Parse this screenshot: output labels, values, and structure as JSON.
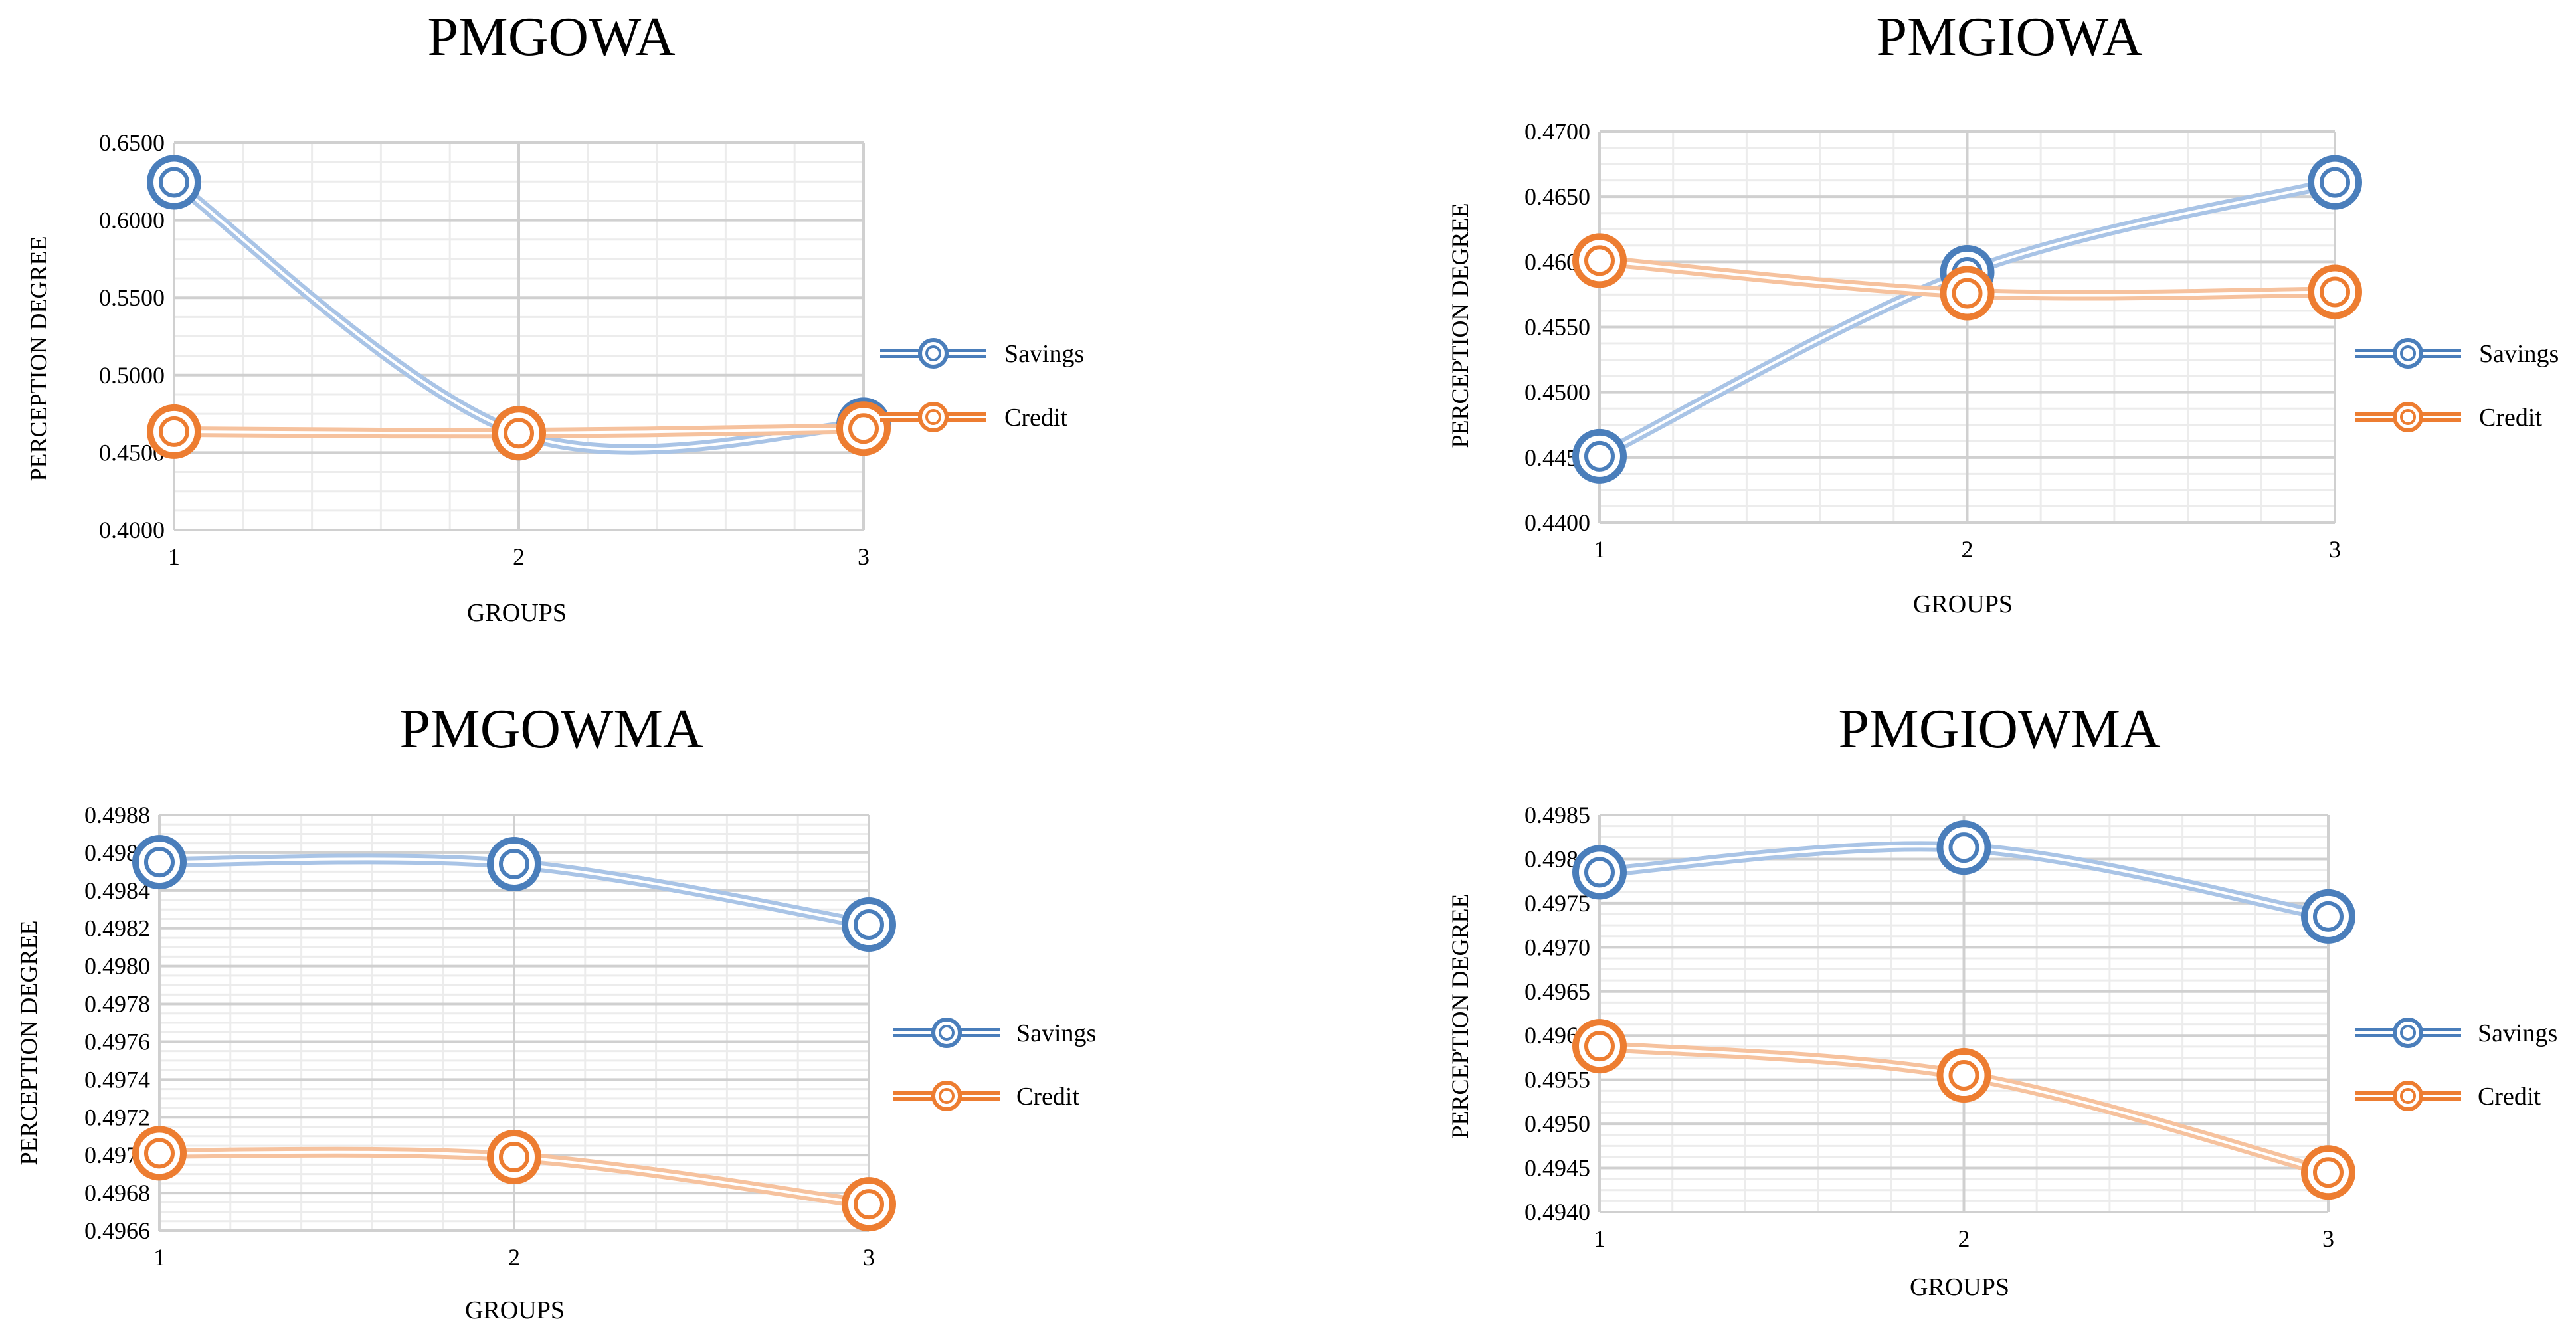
{
  "colors": {
    "savings": "#4a7ebb",
    "savings_light": "#a9c4e6",
    "credit": "#ed7d31",
    "credit_light": "#f6c29e",
    "grid_major": "#d0d0d0",
    "grid_minor": "#ececec"
  },
  "chart_data": [
    {
      "type": "line",
      "title": "PMGOWA",
      "xlabel": "GROUPS",
      "ylabel": "PERCEPTION  DEGREE",
      "categories": [
        "1",
        "2",
        "3"
      ],
      "ylim": [
        0.4,
        0.65
      ],
      "ystep": 0.05,
      "ydecimals": 4,
      "yticks": [
        "0.4000",
        "0.4500",
        "0.5000",
        "0.5500",
        "0.6000",
        "0.6500"
      ],
      "series": [
        {
          "name": "Savings",
          "values": [
            0.6245,
            0.4625,
            0.468
          ]
        },
        {
          "name": "Credit",
          "values": [
            0.4635,
            0.4625,
            0.4655
          ]
        }
      ]
    },
    {
      "type": "line",
      "title": "PMGIOWA",
      "xlabel": "GROUPS",
      "ylabel": "PERCEPTION  DEGREE",
      "categories": [
        "1",
        "2",
        "3"
      ],
      "ylim": [
        0.44,
        0.47
      ],
      "ystep": 0.005,
      "ydecimals": 4,
      "yticks": [
        "0.4400",
        "0.4450",
        "0.4500",
        "0.4550",
        "0.4600",
        "0.4650",
        "0.4700"
      ],
      "series": [
        {
          "name": "Savings",
          "values": [
            0.4451,
            0.4592,
            0.4661
          ]
        },
        {
          "name": "Credit",
          "values": [
            0.4601,
            0.4576,
            0.4577
          ]
        }
      ]
    },
    {
      "type": "line",
      "title": "PMGOWMA",
      "xlabel": "GROUPS",
      "ylabel": "PERCEPTION  DEGREE",
      "categories": [
        "1",
        "2",
        "3"
      ],
      "ylim": [
        0.4966,
        0.4988
      ],
      "ystep": 0.0002,
      "ydecimals": 4,
      "yticks": [
        "0.4966",
        "0.4968",
        "0.4970",
        "0.4972",
        "0.4974",
        "0.4976",
        "0.4978",
        "0.4980",
        "0.4982",
        "0.4984",
        "0.4986",
        "0.4988"
      ],
      "series": [
        {
          "name": "Savings",
          "values": [
            0.49855,
            0.49854,
            0.49822
          ]
        },
        {
          "name": "Credit",
          "values": [
            0.49701,
            0.49699,
            0.49674
          ]
        }
      ]
    },
    {
      "type": "line",
      "title": "PMGIOWMA",
      "xlabel": "GROUPS",
      "ylabel": "PERCEPTION  DEGREE",
      "categories": [
        "1",
        "2",
        "3"
      ],
      "ylim": [
        0.494,
        0.4985
      ],
      "ystep": 0.0005,
      "ydecimals": 4,
      "yticks": [
        "0.4940",
        "0.4945",
        "0.4950",
        "0.4955",
        "0.4960",
        "0.4965",
        "0.4970",
        "0.4975",
        "0.4980",
        "0.4985"
      ],
      "series": [
        {
          "name": "Savings",
          "values": [
            0.49785,
            0.49813,
            0.49735
          ]
        },
        {
          "name": "Credit",
          "values": [
            0.49588,
            0.49555,
            0.49445
          ]
        }
      ]
    }
  ]
}
